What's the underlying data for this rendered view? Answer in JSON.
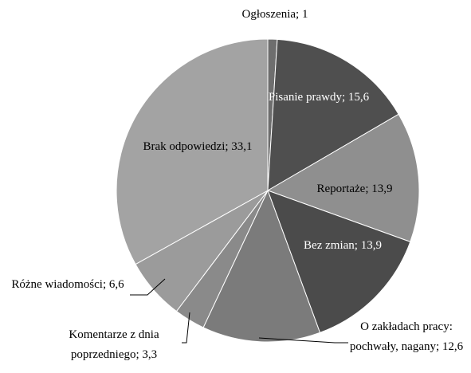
{
  "chart_data": {
    "type": "pie",
    "categories": [
      "Ogłoszenia",
      "Pisanie prawdy",
      "Reportaże",
      "Bez zmian",
      "O zakładach pracy: pochwały, nagany",
      "Komentarze z dnia poprzedniego",
      "Różne wiadomości",
      "Brak odpowiedzi"
    ],
    "values": [
      1,
      15.6,
      13.9,
      13.9,
      12.6,
      3.3,
      6.6,
      33.1
    ],
    "value_labels": [
      "1",
      "15,6",
      "13,9",
      "13,9",
      "12,6",
      "3,3",
      "6,6",
      "33,1"
    ],
    "separator": "; ",
    "colors": [
      "#6e6e6e",
      "#4f4f4f",
      "#8f8f8f",
      "#4b4b4b",
      "#7b7b7b",
      "#8a8a8a",
      "#9b9b9b",
      "#a3a3a3"
    ]
  }
}
